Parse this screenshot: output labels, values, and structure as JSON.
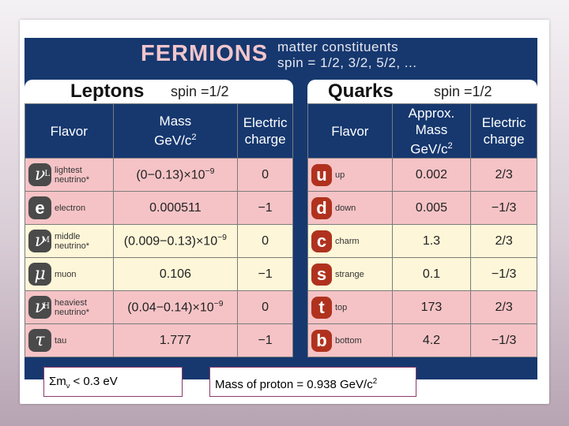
{
  "banner": {
    "title": "FERMIONS",
    "subtitle_line1": "matter constituents",
    "subtitle_line2": "spin = 1/2, 3/2, 5/2, ..."
  },
  "leptons": {
    "title": "Leptons",
    "spin": "spin =1/2",
    "headers": {
      "flavor": "Flavor",
      "mass_line1": "Mass",
      "mass_line2": "GeV/c",
      "mass_sup": "2",
      "charge_line1": "Electric",
      "charge_line2": "charge"
    },
    "rows": [
      {
        "symbol": "ν",
        "sub": "L",
        "name1": "lightest",
        "name2": "neutrino*",
        "mass_pre": "(0−0.13)×10",
        "mass_exp": "−9",
        "charge": "0"
      },
      {
        "symbol": "e",
        "sub": "",
        "name1": "electron",
        "name2": "",
        "mass_pre": "0.000511",
        "mass_exp": "",
        "charge": "−1"
      },
      {
        "symbol": "ν",
        "sub": "M",
        "name1": "middle",
        "name2": "neutrino*",
        "mass_pre": "(0.009−0.13)×10",
        "mass_exp": "−9",
        "charge": "0"
      },
      {
        "symbol": "μ",
        "sub": "",
        "name1": "muon",
        "name2": "",
        "mass_pre": "0.106",
        "mass_exp": "",
        "charge": "−1"
      },
      {
        "symbol": "ν",
        "sub": "H",
        "name1": "heaviest",
        "name2": "neutrino*",
        "mass_pre": "(0.04−0.14)×10",
        "mass_exp": "−9",
        "charge": "0"
      },
      {
        "symbol": "τ",
        "sub": "",
        "name1": "tau",
        "name2": "",
        "mass_pre": "1.777",
        "mass_exp": "",
        "charge": "−1"
      }
    ]
  },
  "quarks": {
    "title": "Quarks",
    "spin": "spin =1/2",
    "headers": {
      "flavor": "Flavor",
      "mass_line1": "Approx.",
      "mass_line2": "Mass",
      "mass_line3": "GeV/c",
      "mass_sup": "2",
      "charge_line1": "Electric",
      "charge_line2": "charge"
    },
    "rows": [
      {
        "symbol": "u",
        "name": "up",
        "mass": "0.002",
        "charge": "2/3"
      },
      {
        "symbol": "d",
        "name": "down",
        "mass": "0.005",
        "charge": "−1/3"
      },
      {
        "symbol": "c",
        "name": "charm",
        "mass": "1.3",
        "charge": "2/3"
      },
      {
        "symbol": "s",
        "name": "strange",
        "mass": "0.1",
        "charge": "−1/3"
      },
      {
        "symbol": "t",
        "name": "top",
        "mass": "173",
        "charge": "2/3"
      },
      {
        "symbol": "b",
        "name": "bottom",
        "mass": "4.2",
        "charge": "−1/3"
      }
    ]
  },
  "footer": {
    "neutrino_sum": "Σm",
    "neutrino_sub": "ν",
    "neutrino_rest": " <  0.3 eV",
    "proton_mass": "Mass of proton = 0.938 GeV/c",
    "proton_sup": "2"
  }
}
